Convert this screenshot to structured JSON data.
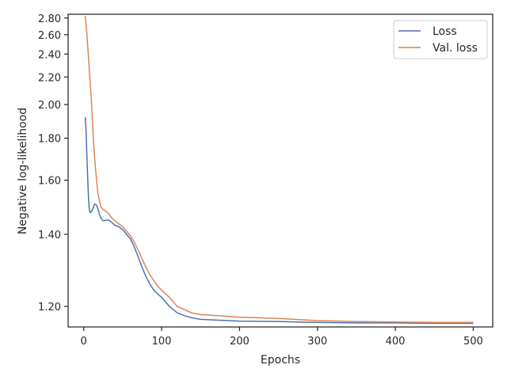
{
  "chart_data": {
    "type": "line",
    "title": "",
    "xlabel": "Epochs",
    "ylabel": "Negative log-likelihood",
    "xlim": [
      -20,
      525
    ],
    "ylim": [
      1.153,
      2.85
    ],
    "y_scale": "reciprocal",
    "grid": false,
    "legend_position": "top-right",
    "x_ticks": [
      0,
      100,
      200,
      300,
      400,
      500
    ],
    "x_tick_labels": [
      "0",
      "100",
      "200",
      "300",
      "400",
      "500"
    ],
    "y_ticks": [
      1.2,
      1.4,
      1.6,
      1.8,
      2.0,
      2.2,
      2.4,
      2.6,
      2.8
    ],
    "y_tick_labels": [
      "1.20",
      "1.40",
      "1.60",
      "1.80",
      "2.00",
      "2.20",
      "2.40",
      "2.60",
      "2.80"
    ],
    "series": [
      {
        "name": "Loss",
        "color": "#4c72b0",
        "x": [
          2,
          3,
          4,
          5,
          6,
          7,
          8,
          9,
          10,
          12,
          14,
          16,
          18,
          20,
          22,
          25,
          28,
          32,
          36,
          40,
          45,
          50,
          55,
          60,
          65,
          70,
          75,
          80,
          85,
          90,
          95,
          100,
          110,
          120,
          130,
          140,
          150,
          175,
          200,
          250,
          300,
          350,
          400,
          450,
          500
        ],
        "y": [
          1.92,
          1.84,
          1.72,
          1.62,
          1.54,
          1.49,
          1.475,
          1.474,
          1.478,
          1.49,
          1.505,
          1.503,
          1.49,
          1.47,
          1.455,
          1.445,
          1.447,
          1.448,
          1.44,
          1.43,
          1.425,
          1.415,
          1.4,
          1.385,
          1.36,
          1.33,
          1.3,
          1.275,
          1.255,
          1.24,
          1.23,
          1.222,
          1.2,
          1.185,
          1.178,
          1.173,
          1.17,
          1.168,
          1.166,
          1.165,
          1.163,
          1.162,
          1.162,
          1.161,
          1.161
        ]
      },
      {
        "name": "Val. loss",
        "color": "#dd8452",
        "x": [
          2,
          4,
          6,
          8,
          10,
          12,
          14,
          16,
          18,
          20,
          22,
          25,
          28,
          32,
          36,
          40,
          45,
          50,
          55,
          60,
          65,
          70,
          75,
          80,
          85,
          90,
          95,
          100,
          110,
          120,
          130,
          140,
          150,
          175,
          200,
          250,
          300,
          350,
          400,
          450,
          500
        ],
        "y": [
          2.83,
          2.62,
          2.38,
          2.18,
          2.02,
          1.82,
          1.7,
          1.62,
          1.55,
          1.52,
          1.495,
          1.485,
          1.48,
          1.47,
          1.455,
          1.445,
          1.435,
          1.425,
          1.41,
          1.395,
          1.375,
          1.35,
          1.325,
          1.3,
          1.28,
          1.265,
          1.25,
          1.24,
          1.222,
          1.2,
          1.192,
          1.184,
          1.181,
          1.178,
          1.175,
          1.172,
          1.167,
          1.165,
          1.164,
          1.163,
          1.163
        ]
      }
    ]
  }
}
